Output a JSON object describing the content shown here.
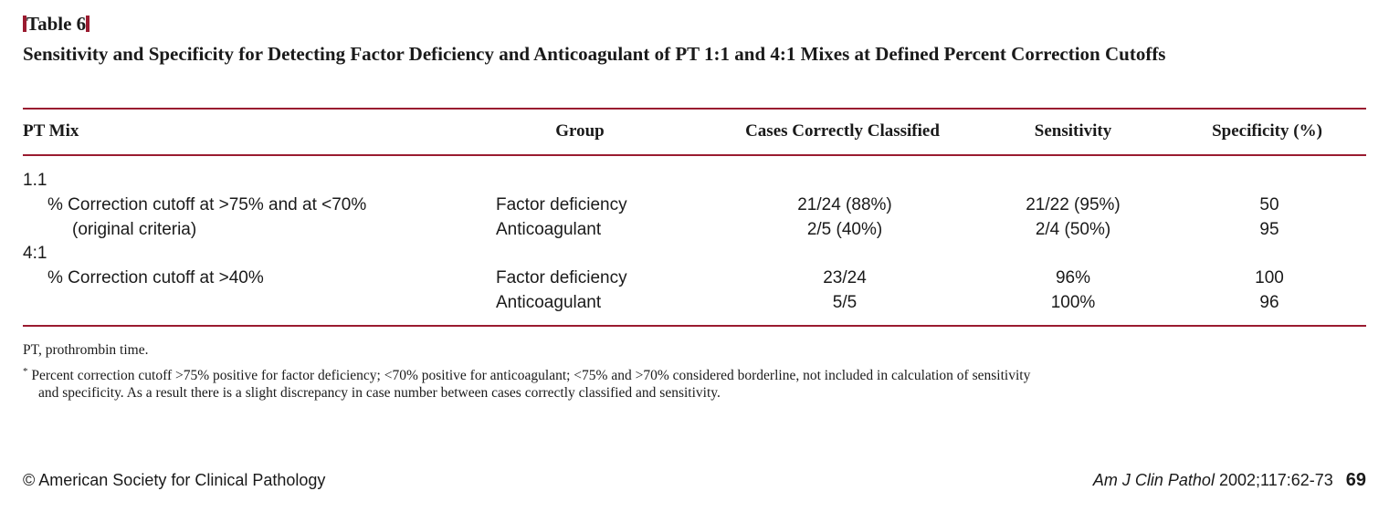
{
  "table_label": "Table 6",
  "table_title": "Sensitivity and Specificity for Detecting Factor Deficiency and Anticoagulant of PT 1:1 and 4:1 Mixes at Defined Percent Correction Cutoffs",
  "headers": {
    "pt_mix": "PT Mix",
    "group": "Group",
    "cases": "Cases Correctly Classified",
    "sensitivity": "Sensitivity",
    "specificity": "Specificity (%)"
  },
  "sections": [
    {
      "label": "1.1",
      "criteria_line1": "% Correction cutoff at >75% and at <70%",
      "criteria_line2": "(original criteria)",
      "rows": [
        {
          "group": "Factor deficiency",
          "cases": "21/24 (88%)",
          "sensitivity": "21/22 (95%)",
          "specificity": "50"
        },
        {
          "group": "Anticoagulant",
          "cases": "2/5 (40%)",
          "sensitivity": "2/4 (50%)",
          "specificity": "95"
        }
      ]
    },
    {
      "label": "4:1",
      "criteria_line1": "% Correction cutoff at >40%",
      "rows": [
        {
          "group": "Factor deficiency",
          "cases": "23/24",
          "sensitivity": "96%",
          "specificity": "100"
        },
        {
          "group": "Anticoagulant",
          "cases": "5/5",
          "sensitivity": "100%",
          "specificity": "96"
        }
      ]
    }
  ],
  "footnotes": {
    "abbrev": "PT, prothrombin time.",
    "marker": "*",
    "note_line1": "Percent correction cutoff >75% positive for factor deficiency; <70% positive for anticoagulant; <75% and >70% considered borderline, not included in calculation of sensitivity",
    "note_line2": "and specificity. As a result there is a slight discrepancy in case number between cases correctly classified and sensitivity."
  },
  "page_footer": {
    "copyright": "© American Society for Clinical Pathology",
    "journal": "Am J Clin Pathol",
    "citation": "2002;117:62-73",
    "page_number": "69"
  },
  "colors": {
    "accent": "#9a1b30",
    "text": "#1a1a1a"
  }
}
